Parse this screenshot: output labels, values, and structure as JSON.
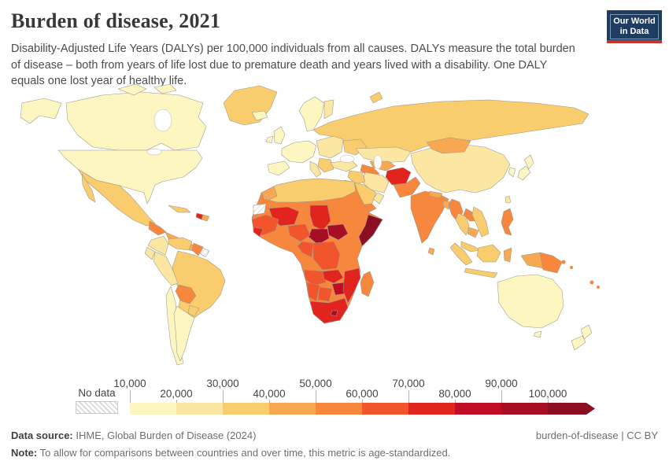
{
  "header": {
    "title": "Burden of disease, 2021",
    "subtitle": "Disability-Adjusted Life Years (DALYs) per 100,000 individuals from all causes. DALYs measure the total burden of disease – both from years of life lost due to premature death and years lived with a disability. One DALY equals one lost year of healthy life.",
    "logo_line1": "Our World",
    "logo_line2": "in Data",
    "logo_bg": "#1d3d63",
    "logo_accent": "#c5352c"
  },
  "legend": {
    "no_data_label": "No data",
    "ticks_upper": [
      "10,000",
      "30,000",
      "50,000",
      "70,000",
      "90,000"
    ],
    "ticks_lower": [
      "20,000",
      "40,000",
      "60,000",
      "80,000",
      "100,000"
    ]
  },
  "chart_data": {
    "type": "choropleth",
    "title": "Burden of disease, 2021",
    "metric": "DALYs (Disability-Adjusted Life Years) per 100,000 individuals, all causes, age-standardized",
    "year": 2021,
    "legend_position": "bottom",
    "bin_edges": [
      10000,
      20000,
      30000,
      40000,
      50000,
      60000,
      70000,
      80000,
      90000,
      100000
    ],
    "palette": [
      "#fdf6c1",
      "#fbe7a1",
      "#f9cd6d",
      "#f8a850",
      "#f6873c",
      "#f2552c",
      "#e2241f",
      "#c00d26",
      "#a70e25",
      "#8b0e22"
    ],
    "regions": {
      "greenland": 3,
      "alaska": 1,
      "canada": 1,
      "usa": 1,
      "mexico": 3,
      "guatemala": 5,
      "central-america": 4,
      "cuba": 3,
      "haiti": 7,
      "dominican-republic": 4,
      "colombia": 2,
      "venezuela": 3,
      "guyana": 5,
      "brazil": 3,
      "peru": 2,
      "ecuador": 2,
      "bolivia": 5,
      "paraguay": 3,
      "chile": 1,
      "argentina": 1,
      "iceland": 1,
      "united-kingdom": 1,
      "ireland": 1,
      "scandinavia": 1,
      "finland": 2,
      "west-europe": 1,
      "iberia": 1,
      "italy": 2,
      "east-europe": 2,
      "balkans": 3,
      "ukraine": 3,
      "russia": 3,
      "turkey": 2,
      "kazakhstan": 2,
      "uzbekistan": 4,
      "turkmenistan": 5,
      "iran": 2,
      "iraq": 3,
      "saudi-arabia": 3,
      "oman": 2,
      "yemen": 5,
      "afghanistan": 7,
      "pakistan": 5,
      "india": 5,
      "nepal": 4,
      "bangladesh": 4,
      "sri-lanka": 4,
      "myanmar": 5,
      "thailand": 3,
      "laos": 5,
      "vietnam": 3,
      "cambodia": 4,
      "malaysia": 3,
      "china": 2,
      "mongolia": 4,
      "south-korea": 1,
      "japan": 1,
      "taiwan": 2,
      "philippines": 5,
      "sumatra": 3,
      "java": 3,
      "borneo": 3,
      "sulawesi": 4,
      "west-papua": 4,
      "papua-new-guinea": 5,
      "melanesia": 5,
      "australia": 1,
      "new-zealand": 1,
      "africa-base": 5,
      "maghreb": 3,
      "morocco": 4,
      "mali": 7,
      "chad": 7,
      "south-sudan": 9,
      "central-african-republic": 9,
      "somalia": 10,
      "west-africa": 6,
      "guinea": 7,
      "nigeria": 6,
      "cameroon-congo": 6,
      "drc": 6,
      "angola": 6,
      "zambia": 7,
      "zimbabwe": 8,
      "mozambique": 7,
      "namibia": 6,
      "botswana": 6,
      "south-africa": 7,
      "lesotho": 9,
      "madagascar": 5
    },
    "no_data_regions": [
      "western-sahara",
      "french-guiana"
    ]
  },
  "footer": {
    "source_label": "Data source:",
    "source_text": " IHME, Global Burden of Disease (2024)",
    "rights": "burden-of-disease | CC BY",
    "note_label": "Note:",
    "note_text": " To allow for comparisons between countries and over time, this metric is age-standardized."
  }
}
